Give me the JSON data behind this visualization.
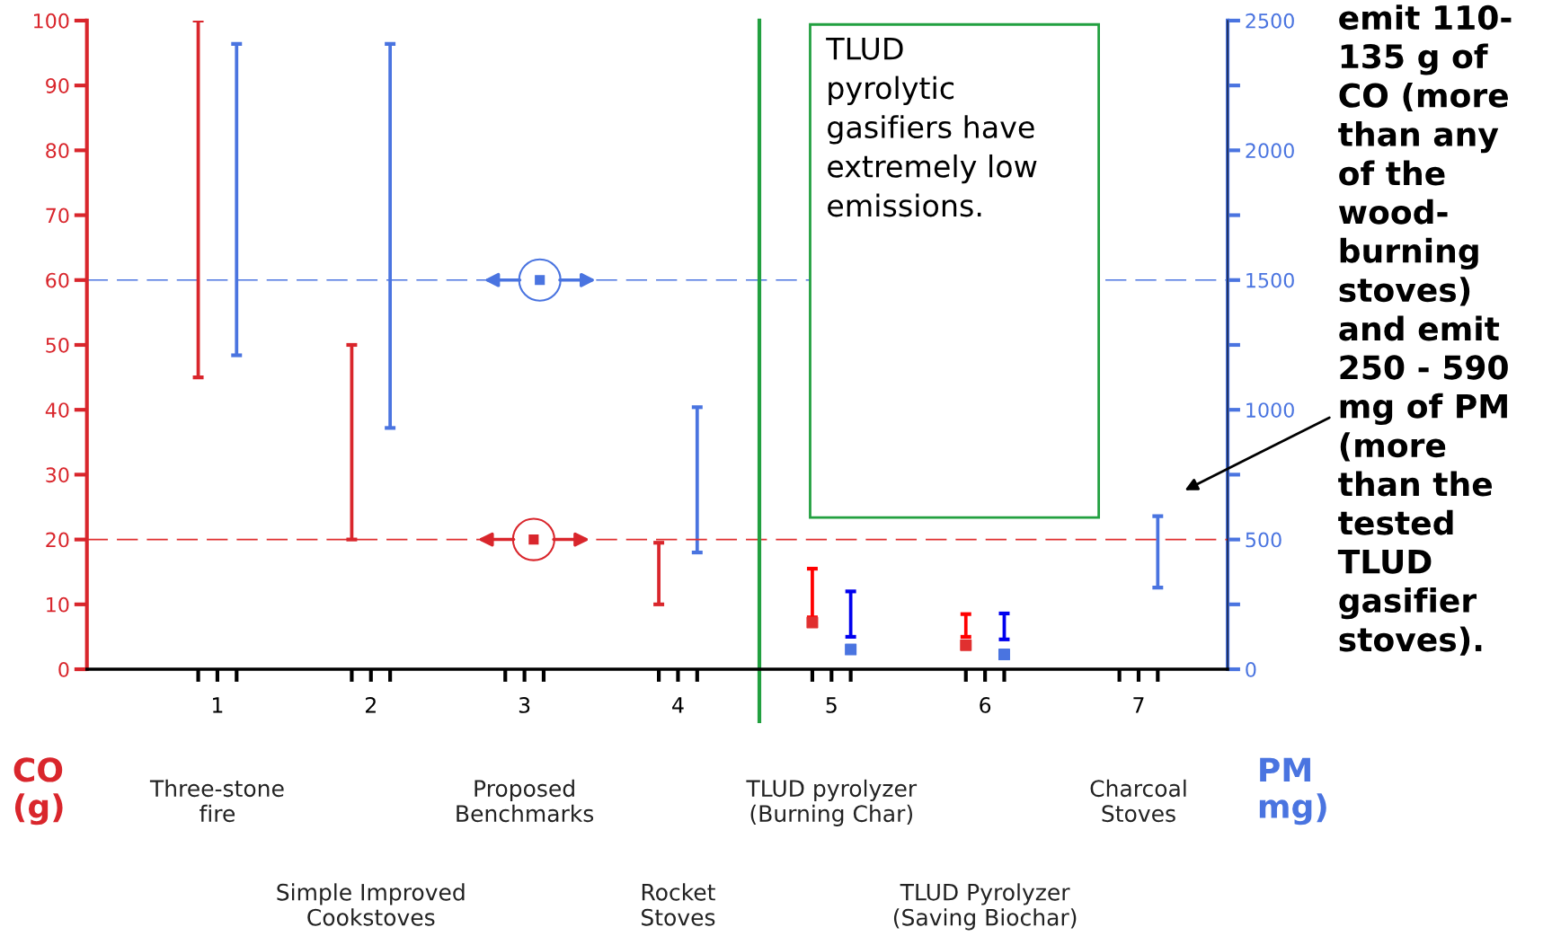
{
  "chart_data": {
    "type": "bar",
    "xlim": [
      0.15,
      7.58
    ],
    "xticks": [
      {
        "value": 0.875,
        "label": null
      },
      1,
      {
        "value": 1.125,
        "label": null
      },
      {
        "value": 1.875,
        "label": null
      },
      2,
      {
        "value": 2.125,
        "label": null
      },
      {
        "value": 2.875,
        "label": null
      },
      3,
      {
        "value": 3.125,
        "label": null
      },
      {
        "value": 3.875,
        "label": null
      },
      4,
      {
        "value": 4.125,
        "label": null
      },
      {
        "value": 4.875,
        "label": null
      },
      5,
      {
        "value": 5.125,
        "label": null
      },
      {
        "value": 5.875,
        "label": null
      },
      6,
      {
        "value": 6.125,
        "label": null
      },
      {
        "value": 6.875,
        "label": null
      },
      7,
      {
        "value": 7.125,
        "label": null
      }
    ],
    "ylim": [
      0,
      100
    ],
    "yticks": [
      0,
      10,
      20,
      30,
      40,
      50,
      60,
      70,
      80,
      90,
      100
    ],
    "y2lim": [
      0,
      2500
    ],
    "y2ticks": [
      0,
      {
        "value": 250,
        "label": null
      },
      500,
      {
        "value": 750,
        "label": null
      },
      1000,
      {
        "value": 1250,
        "label": null
      },
      1500,
      {
        "value": 1750,
        "label": null
      },
      2000,
      {
        "value": 2250,
        "label": null
      },
      2500
    ],
    "ylabel": "CO\n(g)",
    "y2label": "PM\nmg)",
    "grid": false,
    "legend": false,
    "series": [
      {
        "color": "#d9262c",
        "colors": [
          "#d9262c",
          "#d9262c",
          "#d9262c",
          "#ff0000",
          "#ff0000"
        ],
        "x": [
          0.875,
          1.875,
          3.875,
          4.875,
          5.875
        ],
        "base": [
          45,
          20,
          10,
          8,
          5
        ],
        "values": [
          55,
          30,
          9.5,
          7.5,
          3.5
        ]
      },
      {
        "axis": "y2",
        "color": "#4a74e0",
        "colors": [
          "#4a74e0",
          "#4a74e0",
          "#4a74e0",
          "#0000ee",
          "#0000ee",
          "#4a74e0"
        ],
        "x": [
          1.125,
          2.125,
          4.125,
          5.125,
          6.125,
          7.125
        ],
        "base": [
          1210,
          930,
          450,
          125,
          115,
          315
        ],
        "values": [
          1200,
          1480,
          560,
          175,
          100,
          275
        ]
      },
      {
        "type": "scatter",
        "marker": "square",
        "color": "#e03030",
        "x": [
          4.875,
          5.875
        ],
        "values": [
          7.2,
          3.7
        ]
      },
      {
        "type": "scatter",
        "marker": "square",
        "axis": "y2",
        "color": "#4a74e0",
        "x": [
          5.125,
          6.125
        ],
        "values": [
          76,
          57
        ]
      },
      {
        "type": "scatter",
        "marker": "circle",
        "color": "#d9262c",
        "x": [
          3.06
        ],
        "values": [
          20
        ]
      },
      {
        "type": "scatter",
        "marker": "circle",
        "axis": "y2",
        "color": "#4a74e0",
        "x": [
          3.1
        ],
        "values": [
          1500
        ]
      }
    ],
    "ref_lines": [
      {
        "axis": "y",
        "value": 20,
        "color": "#e03030",
        "line_style": "dashed"
      },
      {
        "axis": "y2",
        "value": 1500,
        "color": "#4a74e0",
        "line_style": "dashed"
      },
      {
        "axis": "x",
        "value": 4.53,
        "color": "#22a040",
        "line_style": "solid"
      }
    ],
    "annotations": [
      "Three-stone\nfire",
      "Simple Improved\nCookstoves",
      "Proposed\nBenchmarks",
      "Rocket\nStoves",
      "TLUD pyrolyzer\n(Burning Char)",
      "TLUD Pyrolyzer\n(Saving Biochar)",
      "Charcoal\nStoves",
      "TLUD\npyrolytic\ngasifiers have\nextremely low\nemissions.",
      "emit 110-\n135 g of\nCO (more\nthan any\nof the\nwood-\nburning\nstoves)\nand emit\n250 - 590\nmg of PM\n(more\nthan the\ntested\nTLUD\ngasifier\nstoves)."
    ]
  }
}
